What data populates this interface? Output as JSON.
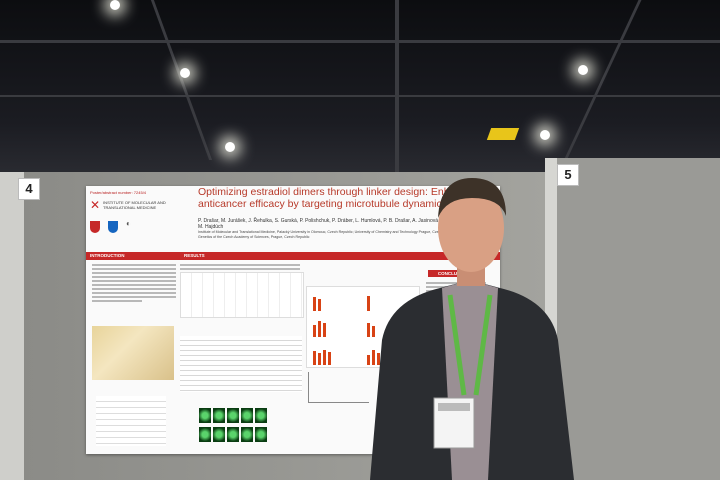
{
  "poster": {
    "abstract_number": "Poster/abstract number: 7245/4",
    "institute": "INSTITUTE OF MOLECULAR AND TRANSLATIONAL MEDICINE",
    "title": "Optimizing estradiol dimers through linker design: Enhancing anticancer efficacy by targeting microtubule dynamics",
    "authors": "P. Drašar, M. Jurášek, J. Řehulka, S. Gurská, P. Polishchuk, P. Dráber, L. Humlová, P. B. Drašar, A. Jasinová, O. Mokshyna, L. Hrubý, M. Hajdúch",
    "affiliations": "Institute of Molecular and Translational Medicine, Palacký University in Olomouc, Czech Republic; University of Chemistry and Technology Prague, Czech Republic; Institute of Molecular Genetics of the Czech Academy of Sciences, Prague, Czech Republic",
    "sections": {
      "introduction": "INTRODUCTION",
      "results": "RESULTS",
      "conclusion": "CONCLUSION"
    }
  },
  "booth_numbers": {
    "left": "4",
    "right": "5"
  }
}
